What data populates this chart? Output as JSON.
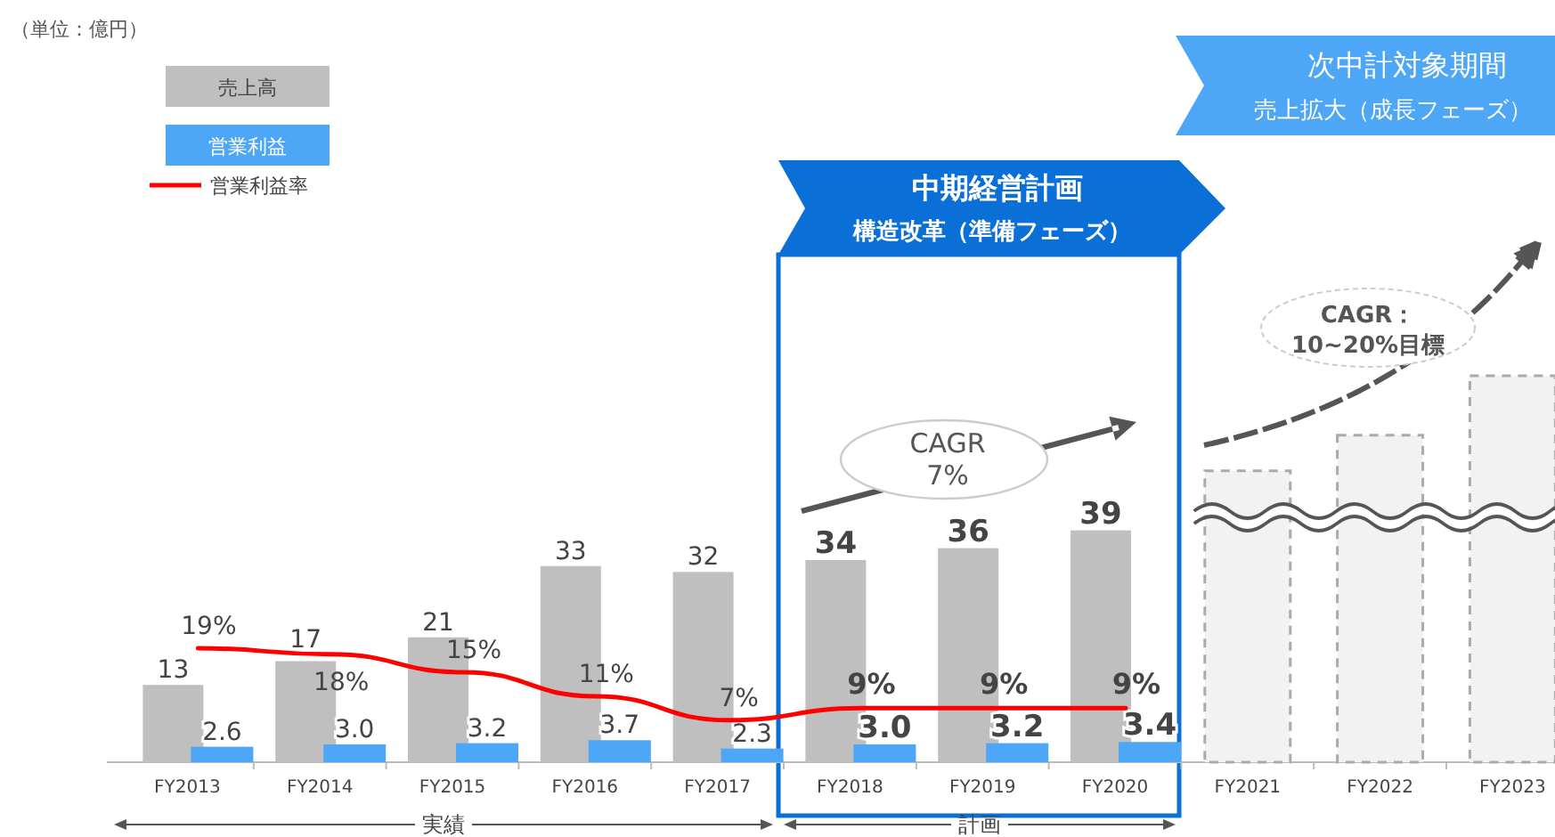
{
  "chart_data": {
    "type": "bar",
    "categories": [
      "FY2013",
      "FY2014",
      "FY2015",
      "FY2016",
      "FY2017",
      "FY2018",
      "FY2019",
      "FY2020",
      "FY2021",
      "FY2022",
      "FY2023"
    ],
    "series": [
      {
        "name": "売上高",
        "color": "#bfbfbf",
        "values": [
          13,
          17,
          21,
          33,
          32,
          34,
          36,
          39,
          null,
          null,
          null
        ],
        "value_labels": [
          "13",
          "17",
          "21",
          "33",
          "32",
          "34",
          "36",
          "39",
          null,
          null,
          null
        ]
      },
      {
        "name": "営業利益",
        "color": "#4ea6f7",
        "values": [
          2.6,
          3.0,
          3.2,
          3.7,
          2.3,
          3.0,
          3.2,
          3.4,
          null,
          null,
          null
        ],
        "value_labels": [
          "2.6",
          "3.0",
          "3.2",
          "3.7",
          "2.3",
          "3.0",
          "3.2",
          "3.4",
          null,
          null,
          null
        ]
      },
      {
        "name": "営業利益率",
        "type": "line",
        "axis": "y2",
        "color": "#ff0000",
        "values": [
          19,
          18,
          15,
          11,
          7,
          9,
          9,
          9,
          null,
          null,
          null
        ],
        "value_labels": [
          "19%",
          "18%",
          "15%",
          "11%",
          "7%",
          "9%",
          "9%",
          "9%",
          null,
          null,
          null
        ]
      },
      {
        "color": "#f2f2f2",
        "line_style": "dashed",
        "values": [
          null,
          null,
          null,
          null,
          null,
          null,
          null,
          null,
          49,
          55,
          65
        ]
      }
    ],
    "tick_labels": "x",
    "legend": "top left",
    "annotations": [
      "（単位：億円）",
      "中期経営計画",
      "構造改革（準備フェーズ）",
      "次中計対象期間",
      "売上拡大（成長フェーズ）",
      "CAGR\n7%",
      "CAGR：\n10~20%目標",
      "実績",
      "計画"
    ]
  }
}
